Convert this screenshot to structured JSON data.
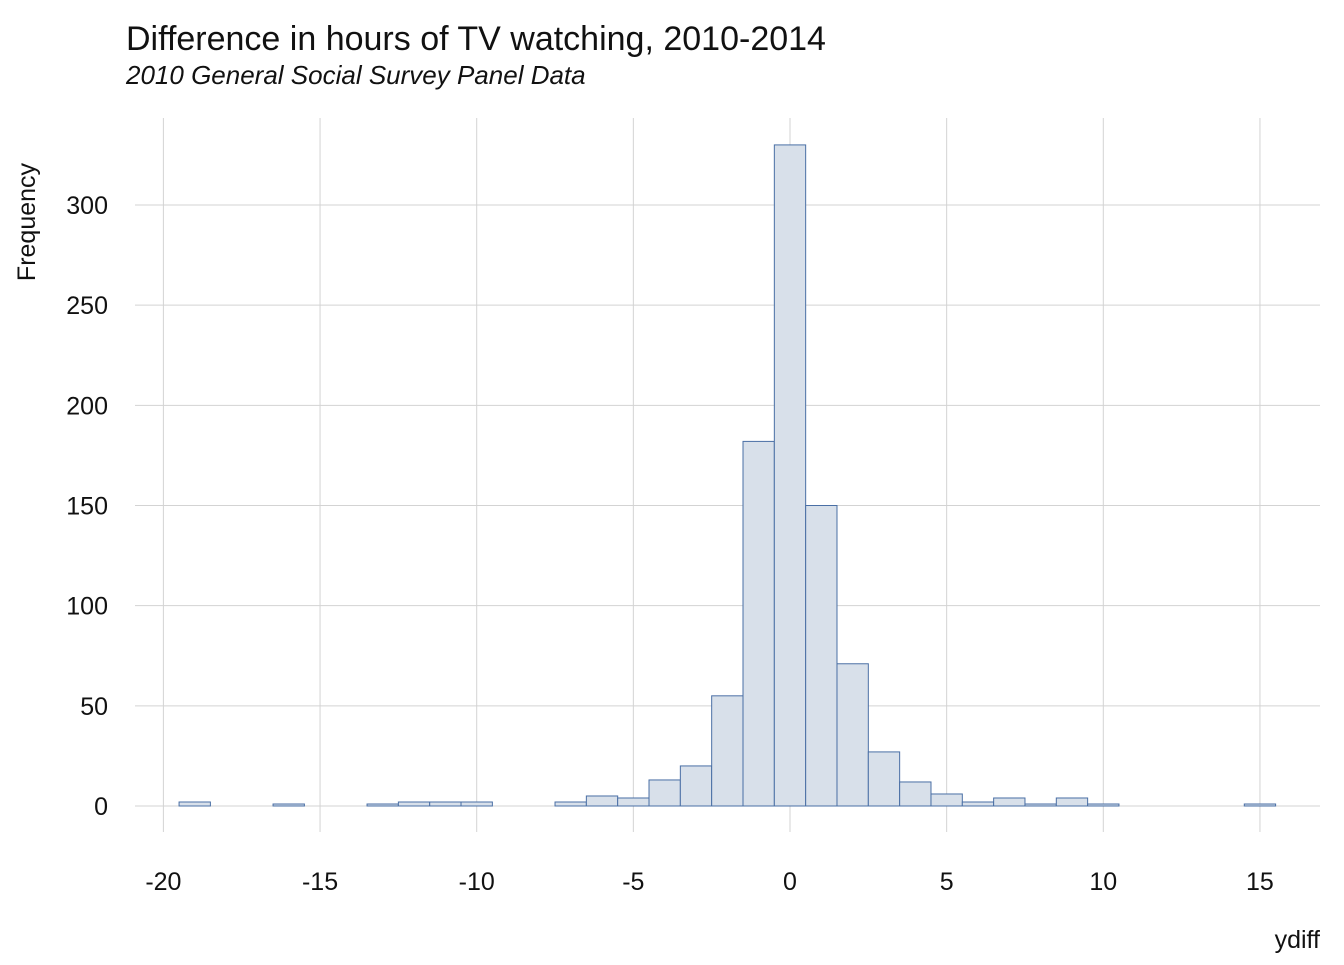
{
  "chart_data": {
    "type": "bar",
    "title": "Difference in hours of TV watching, 2010-2014",
    "subtitle": "2010 General Social Survey Panel Data",
    "xlabel": "ydiff",
    "ylabel": "Frequency",
    "bin_width": 1,
    "x": [
      -19,
      -16,
      -13,
      -12,
      -11,
      -10,
      -7,
      -6,
      -5,
      -4,
      -3,
      -2,
      -1,
      0,
      1,
      2,
      3,
      4,
      5,
      6,
      7,
      8,
      9,
      10,
      15
    ],
    "values": [
      2,
      1,
      1,
      2,
      2,
      2,
      2,
      5,
      4,
      13,
      20,
      55,
      182,
      330,
      150,
      71,
      27,
      12,
      6,
      2,
      4,
      1,
      4,
      1,
      1
    ],
    "xlim": [
      -21,
      17
    ],
    "ylim": [
      0,
      345
    ],
    "xticks": [
      -20,
      -15,
      -10,
      -5,
      0,
      5,
      10,
      15
    ],
    "xtick_labels": [
      "-20",
      "-15",
      "-10",
      "-5",
      "0",
      "5",
      "10",
      "15"
    ],
    "yticks": [
      0,
      50,
      100,
      150,
      200,
      250,
      300
    ],
    "ytick_labels": [
      "0",
      "50",
      "100",
      "150",
      "200",
      "250",
      "300"
    ],
    "grid": true,
    "colors": {
      "fill": "#d8e0ea",
      "stroke": "#4a6fa5",
      "grid": "#d3d3d3"
    }
  }
}
